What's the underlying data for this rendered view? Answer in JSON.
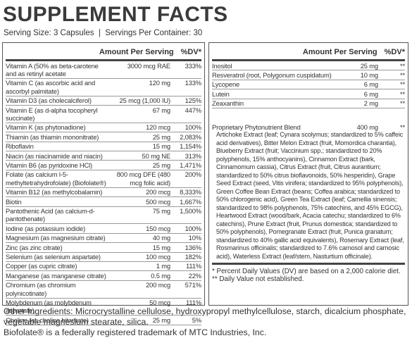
{
  "title": "SUPPLEMENT FACTS",
  "serving": "Serving Size: 3 Capsules  |  Servings Per Container: 30",
  "left": {
    "header": {
      "amount": "Amount Per Serving",
      "dv": "%DV*"
    },
    "rows": [
      [
        "Vitamin A (50% as beta-carotene and as retinyl acetate",
        "3000 mcg RAE",
        "333%"
      ],
      [
        "Vitamin C (as ascorbic acid and ascorbyl palmitate)",
        "120 mg",
        "133%"
      ],
      [
        "Vitamin D3 (as cholecalciferol)",
        "25 mcg (1,000 IU)",
        "125%"
      ],
      [
        "Vitamin E (as d-alpha tocopheryl succinate)",
        "67 mg",
        "447%"
      ],
      [
        "Vitamin K (as phytonadione)",
        "120 mcg",
        "100%"
      ],
      [
        "Thiamin (as thiamin mononitrate)",
        "25 mg",
        "2,083%"
      ],
      [
        "Riboflavin",
        "15 mg",
        "1,154%"
      ],
      [
        "Niacin (as niacinamide and niacin)",
        "50 mg NE",
        "313%"
      ],
      [
        "Vitamin B6 (as pyridoxine HCl)",
        "25 mg",
        "1,471%"
      ],
      [
        "Folate (as calcium l-5-methyltetrahydrofolate) (Biofolate®)",
        "800 mcg DFE (480 mcg folic acid)",
        "200%"
      ],
      [
        "Vitamin B12 (as methylcobalamin)",
        "200 mcg",
        "8,333%"
      ],
      [
        "Biotin",
        "500 mcg",
        "1,667%"
      ],
      [
        "Pantothenic Acid (as calcium-d-pantothenate)",
        "75 mg",
        "1,500%"
      ],
      [
        "Iodine (as potassium iodide)",
        "150 mcg",
        "100%"
      ],
      [
        "Magnesium (as magnesium citrate)",
        "40 mg",
        "10%"
      ],
      [
        "Zinc (as zinc citrate)",
        "15 mg",
        "136%"
      ],
      [
        "Selenium (as selenium aspartate)",
        "100 mcg",
        "182%"
      ],
      [
        "Copper (as cupric citrate)",
        "1 mg",
        "111%"
      ],
      [
        "Manganese (as manganese citrate)",
        "0.5 mg",
        "22%"
      ],
      [
        "Chromium (as chromium polynicotinate)",
        "200 mcg",
        "571%"
      ],
      [
        "Molybdenum (as molybdenum aspartate)",
        "50 mcg",
        "111%"
      ],
      [
        "Choline (as choline bitartrate)",
        "25 mg",
        "5%"
      ]
    ]
  },
  "right": {
    "header": {
      "amount": "Amount Per Serving",
      "dv": "%DV*"
    },
    "rows": [
      [
        "Inositol",
        "25 mg",
        "**"
      ],
      [
        "Resveratrol (root, Polygonum cuspidatum)",
        "10 mg",
        "**"
      ],
      [
        "Lycopene",
        "6 mg",
        "**"
      ],
      [
        "Lutein",
        "6 mg",
        "**"
      ],
      [
        "Zeaxanthin",
        "2 mg",
        "**"
      ]
    ],
    "blend": [
      "Proprietary Phytonutrient Blend",
      "400 mg",
      "**"
    ],
    "blend_description": "Artichoke Extract (leaf; Cynara scolymus; standardized to 5% caffeic acid derivatives), Bitter Melon Extract (fruit, Momordica charantia), Blueberry Extract (fruit; Vaccinium spp.; standardized to 20% polyphenols, 15% anthocyanins), Cinnamon Extract (bark, Cinnamomum cassia), Citrus Extract (fruit, Citrus aurantium; standardized to 50% citrus bioflavonoids, 50% hesperidin), Grape Seed Extract (seed, Vitis vinifera; standardized to 95% polyphenols), Green Coffee Bean Extract (beans; Coffea arabica; standardized to 50% chlorogenic acid), Green Tea Extract (leaf; Camellia sinensis; standardized to 98% polyphenols, 75% catechins, and 45% EGCG), Heartwood Extract (wood/bark, Acacia catechu; standardized to 6% catechins), Prune Extract (fruit, Prunus domestica; standardized to 50% polyphenols), Pomegranate Extract (fruit, Punica granatum; standardized to 40% gallic acid equivalents), Rosemary Extract (leaf, Rosmarinus officinalis; standardized to 7.6% carnosol and carnosic acid), Waterless Extract (leaf/stem, Nasturtium officinale).",
    "footnotes": [
      "* Percent Daily Values (DV) are based on a 2,000 calorie diet.",
      "** Daily Value not established."
    ]
  },
  "other_ingredients": "Other Ingredients: Microcrystalline cellulose, hydroxypropyl methylcellulose, starch, dicalcium phosphate, vegetable magnesium stearate, silica.",
  "trademark": "Biofolate® is a federally registered trademark of MTC Industries, Inc."
}
